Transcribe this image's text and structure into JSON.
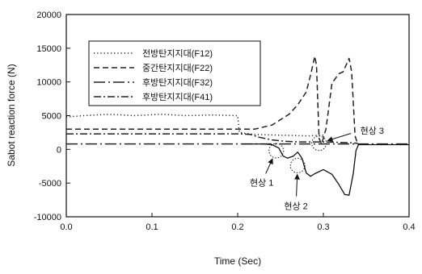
{
  "chart_data": {
    "type": "line",
    "xlabel": "Time (Sec)",
    "ylabel": "Sabot reaction force (N)",
    "xlim": [
      0.0,
      0.4
    ],
    "ylim": [
      -10000,
      20000
    ],
    "x_ticks": [
      0.0,
      0.1,
      0.2,
      0.3,
      0.4
    ],
    "x_tick_labels": [
      "0.0",
      "0.1",
      "0.2",
      "0.3",
      "0.4"
    ],
    "y_ticks": [
      -10000,
      -5000,
      0,
      5000,
      10000,
      15000,
      20000
    ],
    "y_tick_labels": [
      "-10000",
      "-5000",
      "0",
      "5000",
      "10000",
      "15000",
      "20000"
    ],
    "grid": false,
    "legend_position": "top-left",
    "series": [
      {
        "name": "전방탄지지대(F12)",
        "style": "dotted",
        "color": "#222222",
        "points": [
          [
            0.0,
            4800
          ],
          [
            0.02,
            5000
          ],
          [
            0.05,
            5200
          ],
          [
            0.08,
            5000
          ],
          [
            0.11,
            5200
          ],
          [
            0.14,
            5000
          ],
          [
            0.17,
            5100
          ],
          [
            0.2,
            5000
          ],
          [
            0.202,
            2500
          ],
          [
            0.22,
            2200
          ],
          [
            0.25,
            2100
          ],
          [
            0.28,
            2000
          ],
          [
            0.3,
            2100
          ]
        ]
      },
      {
        "name": "중간탄지지대(F22)",
        "style": "dashed",
        "color": "#222222",
        "points": [
          [
            0.0,
            3000
          ],
          [
            0.2,
            3000
          ],
          [
            0.22,
            3000
          ],
          [
            0.24,
            3600
          ],
          [
            0.26,
            5200
          ],
          [
            0.27,
            6600
          ],
          [
            0.28,
            8500
          ],
          [
            0.285,
            11000
          ],
          [
            0.29,
            13800
          ],
          [
            0.292,
            12500
          ],
          [
            0.295,
            1600
          ],
          [
            0.298,
            800
          ],
          [
            0.303,
            3000
          ],
          [
            0.31,
            9800
          ],
          [
            0.318,
            11200
          ],
          [
            0.323,
            11500
          ],
          [
            0.33,
            13500
          ],
          [
            0.333,
            11500
          ],
          [
            0.337,
            2000
          ],
          [
            0.34,
            800
          ]
        ]
      },
      {
        "name": "후방탄지지대(F32)",
        "style": "dash-dot-long",
        "color": "#222222",
        "points": [
          [
            0.0,
            800
          ],
          [
            0.15,
            800
          ],
          [
            0.2,
            800
          ],
          [
            0.25,
            800
          ],
          [
            0.3,
            800
          ],
          [
            0.35,
            800
          ],
          [
            0.4,
            800
          ]
        ]
      },
      {
        "name": "후방탄지지대(F41)",
        "style": "dash-dot",
        "color": "#222222",
        "points": [
          [
            0.0,
            2300
          ],
          [
            0.2,
            2300
          ],
          [
            0.205,
            2300
          ],
          [
            0.215,
            2200
          ],
          [
            0.225,
            1800
          ],
          [
            0.24,
            1400
          ],
          [
            0.255,
            1200
          ],
          [
            0.27,
            1100
          ],
          [
            0.3,
            1100
          ],
          [
            0.33,
            1000
          ],
          [
            0.34,
            900
          ]
        ]
      },
      {
        "name": "",
        "style": "solid",
        "color": "#111111",
        "points": [
          [
            0.205,
            800
          ],
          [
            0.23,
            800
          ],
          [
            0.24,
            700
          ],
          [
            0.248,
            200
          ],
          [
            0.253,
            -1000
          ],
          [
            0.258,
            -1300
          ],
          [
            0.265,
            -1000
          ],
          [
            0.27,
            -400
          ],
          [
            0.275,
            -1300
          ],
          [
            0.28,
            -3500
          ],
          [
            0.285,
            -4000
          ],
          [
            0.29,
            -3600
          ],
          [
            0.3,
            -3000
          ],
          [
            0.31,
            -3700
          ],
          [
            0.318,
            -5200
          ],
          [
            0.325,
            -6700
          ],
          [
            0.33,
            -6800
          ],
          [
            0.335,
            -3500
          ],
          [
            0.338,
            -200
          ],
          [
            0.341,
            700
          ],
          [
            0.4,
            700
          ]
        ]
      }
    ],
    "annotations": [
      {
        "label": "현상 1",
        "circle_at": [
          0.245,
          -200
        ],
        "text_at": [
          0.228,
          -4900
        ]
      },
      {
        "label": "현상 2",
        "circle_at": [
          0.27,
          -2400
        ],
        "text_at": [
          0.268,
          -8400
        ]
      },
      {
        "label": "현상 3",
        "circle_at": [
          0.295,
          900
        ],
        "text_at": [
          0.343,
          2800
        ]
      }
    ]
  }
}
